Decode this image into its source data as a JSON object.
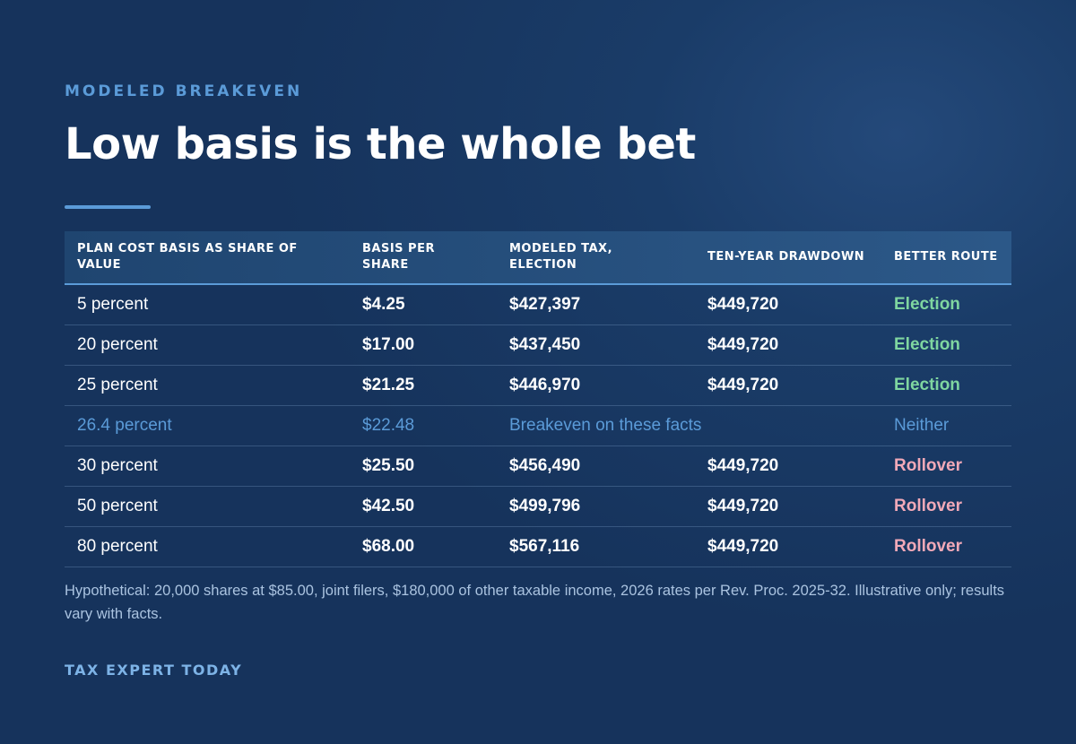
{
  "eyebrow": "MODELED BREAKEVEN",
  "title": "Low basis is the whole bet",
  "colors": {
    "background": "#16335c",
    "accent": "#5b9bd8",
    "election": "#7fd6a0",
    "rollover": "#f2a9b8"
  },
  "table": {
    "headers": [
      "PLAN COST BASIS AS SHARE OF VALUE",
      "BASIS PER SHARE",
      "MODELED TAX, ELECTION",
      "TEN-YEAR DRAWDOWN",
      "BETTER ROUTE"
    ],
    "rows": [
      {
        "basis_share": "5 percent",
        "basis_per_share": "$4.25",
        "tax_election": "$427,397",
        "drawdown": "$449,720",
        "route": "Election"
      },
      {
        "basis_share": "20 percent",
        "basis_per_share": "$17.00",
        "tax_election": "$437,450",
        "drawdown": "$449,720",
        "route": "Election"
      },
      {
        "basis_share": "25 percent",
        "basis_per_share": "$21.25",
        "tax_election": "$446,970",
        "drawdown": "$449,720",
        "route": "Election"
      },
      {
        "basis_share": "26.4 percent",
        "basis_per_share": "$22.48",
        "breakeven_text": "Breakeven on these facts",
        "route": "Neither"
      },
      {
        "basis_share": "30 percent",
        "basis_per_share": "$25.50",
        "tax_election": "$456,490",
        "drawdown": "$449,720",
        "route": "Rollover"
      },
      {
        "basis_share": "50 percent",
        "basis_per_share": "$42.50",
        "tax_election": "$499,796",
        "drawdown": "$449,720",
        "route": "Rollover"
      },
      {
        "basis_share": "80 percent",
        "basis_per_share": "$68.00",
        "tax_election": "$567,116",
        "drawdown": "$449,720",
        "route": "Rollover"
      }
    ]
  },
  "note": "Hypothetical: 20,000 shares at $85.00, joint filers, $180,000 of other taxable income, 2026 rates per Rev. Proc. 2025-32. Illustrative only; results vary with facts.",
  "brand": "TAX EXPERT TODAY"
}
